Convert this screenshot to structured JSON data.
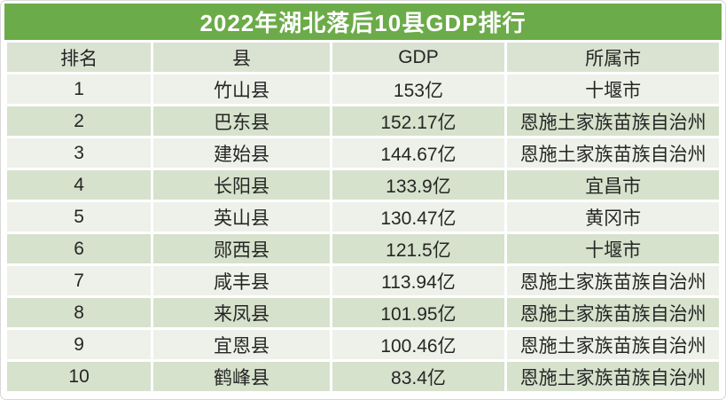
{
  "chart_data": {
    "type": "table",
    "title": "2022年湖北落后10县GDP排行",
    "columns": [
      "排名",
      "县",
      "GDP",
      "所属市"
    ],
    "rows": [
      [
        "1",
        "竹山县",
        "153亿",
        "十堰市"
      ],
      [
        "2",
        "巴东县",
        "152.17亿",
        "恩施土家族苗族自治州"
      ],
      [
        "3",
        "建始县",
        "144.67亿",
        "恩施土家族苗族自治州"
      ],
      [
        "4",
        "长阳县",
        "133.9亿",
        "宜昌市"
      ],
      [
        "5",
        "英山县",
        "130.47亿",
        "黄冈市"
      ],
      [
        "6",
        "郧西县",
        "121.5亿",
        "十堰市"
      ],
      [
        "7",
        "咸丰县",
        "113.94亿",
        "恩施土家族苗族自治州"
      ],
      [
        "8",
        "来凤县",
        "101.95亿",
        "恩施土家族苗族自治州"
      ],
      [
        "9",
        "宜恩县",
        "100.46亿",
        "恩施土家族苗族自治州"
      ],
      [
        "10",
        "鹤峰县",
        "83.4亿",
        "恩施土家族苗族自治州"
      ]
    ],
    "gdp_values_yi": [
      153,
      152.17,
      144.67,
      133.9,
      130.47,
      121.5,
      113.94,
      101.95,
      100.46,
      83.4
    ],
    "unit": "亿"
  },
  "colors": {
    "title_bg": "#6CAB49",
    "title_text": "#FFFFFF",
    "header_bg": "#DAE3D1",
    "row_odd_bg": "#EDF1E9",
    "row_even_bg": "#D6E2CC",
    "cell_text": "#262626",
    "separator": "#FFFFFF"
  }
}
